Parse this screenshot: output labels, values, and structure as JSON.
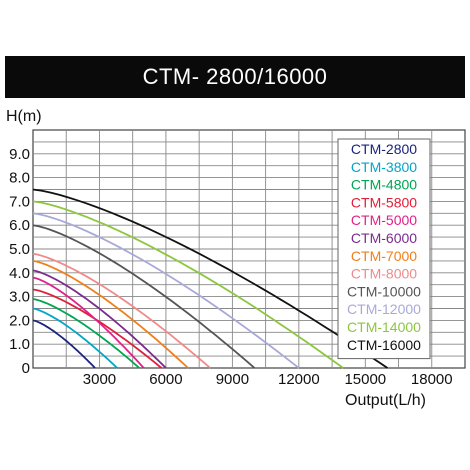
{
  "chart_data": {
    "type": "line",
    "title": "CTM- 2800/16000",
    "ylabel": "H(m)",
    "xlabel": "Output(L/h)",
    "xlim": [
      0,
      19500
    ],
    "ylim": [
      0,
      10
    ],
    "grid": true,
    "legend_placement": "top-right",
    "x_ticks": [
      {
        "value": 3000,
        "label": "3000"
      },
      {
        "value": 6000,
        "label": "6000"
      },
      {
        "value": 9000,
        "label": "9000"
      },
      {
        "value": 12000,
        "label": "12000"
      },
      {
        "value": 15000,
        "label": "15000"
      },
      {
        "value": 18000,
        "label": "18000"
      }
    ],
    "y_ticks": [
      {
        "value": 0,
        "label": "0"
      },
      {
        "value": 1,
        "label": "1.0"
      },
      {
        "value": 2,
        "label": "2.0"
      },
      {
        "value": 3,
        "label": "3.0"
      },
      {
        "value": 4,
        "label": "4.0"
      },
      {
        "value": 5,
        "label": "5.0"
      },
      {
        "value": 6,
        "label": "6.0"
      },
      {
        "value": 7,
        "label": "7.0"
      },
      {
        "value": 8,
        "label": "8.0"
      },
      {
        "value": 9,
        "label": "9.0"
      }
    ],
    "series": [
      {
        "name": "CTM-2800",
        "color": "#1a237e",
        "max_head": 2.0,
        "max_flow": 2800
      },
      {
        "name": "CTM-3800",
        "color": "#00a6c8",
        "max_head": 2.5,
        "max_flow": 3800
      },
      {
        "name": "CTM-4800",
        "color": "#00a651",
        "max_head": 2.9,
        "max_flow": 4800
      },
      {
        "name": "CTM-5800",
        "color": "#e0203a",
        "max_head": 3.3,
        "max_flow": 5800
      },
      {
        "name": "CTM-5000",
        "color": "#e0218a",
        "max_head": 3.8,
        "max_flow": 5000
      },
      {
        "name": "CTM-6000",
        "color": "#7b2b8e",
        "max_head": 4.1,
        "max_flow": 6000
      },
      {
        "name": "CTM-7000",
        "color": "#f07f1a",
        "max_head": 4.5,
        "max_flow": 7000
      },
      {
        "name": "CTM-8000",
        "color": "#f08a8a",
        "max_head": 4.8,
        "max_flow": 8000
      },
      {
        "name": "CTM-10000",
        "color": "#555555",
        "max_head": 6.0,
        "max_flow": 10000
      },
      {
        "name": "CTM-12000",
        "color": "#a9a9d8",
        "max_head": 6.5,
        "max_flow": 12000
      },
      {
        "name": "CTM-14000",
        "color": "#8dc63f",
        "max_head": 7.0,
        "max_flow": 14000
      },
      {
        "name": "CTM-16000",
        "color": "#111111",
        "max_head": 7.5,
        "max_flow": 16000
      }
    ]
  }
}
